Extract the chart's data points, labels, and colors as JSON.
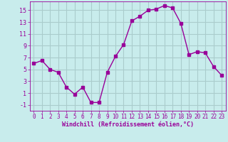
{
  "x": [
    0,
    1,
    2,
    3,
    4,
    5,
    6,
    7,
    8,
    9,
    10,
    11,
    12,
    13,
    14,
    15,
    16,
    17,
    18,
    19,
    20,
    21,
    22,
    23
  ],
  "y": [
    6,
    6.5,
    5,
    4.5,
    2,
    0.8,
    2,
    -0.6,
    -0.6,
    4.5,
    7.2,
    9.2,
    13.2,
    14,
    15,
    15.2,
    15.8,
    15.4,
    12.8,
    7.5,
    8,
    7.8,
    5.5,
    4
  ],
  "line_color": "#990099",
  "marker": "s",
  "marker_size": 2.5,
  "bg_color": "#c8ecec",
  "grid_color": "#aacccc",
  "xlabel": "Windchill (Refroidissement éolien,°C)",
  "xlabel_color": "#990099",
  "tick_color": "#990099",
  "ylim": [
    -2,
    16.5
  ],
  "xlim": [
    -0.5,
    23.5
  ],
  "yticks": [
    -1,
    1,
    3,
    5,
    7,
    9,
    11,
    13,
    15
  ],
  "xticks": [
    0,
    1,
    2,
    3,
    4,
    5,
    6,
    7,
    8,
    9,
    10,
    11,
    12,
    13,
    14,
    15,
    16,
    17,
    18,
    19,
    20,
    21,
    22,
    23
  ],
  "xtick_labels": [
    "0",
    "1",
    "2",
    "3",
    "4",
    "5",
    "6",
    "7",
    "8",
    "9",
    "10",
    "11",
    "12",
    "13",
    "14",
    "15",
    "16",
    "17",
    "18",
    "19",
    "20",
    "21",
    "22",
    "23"
  ]
}
